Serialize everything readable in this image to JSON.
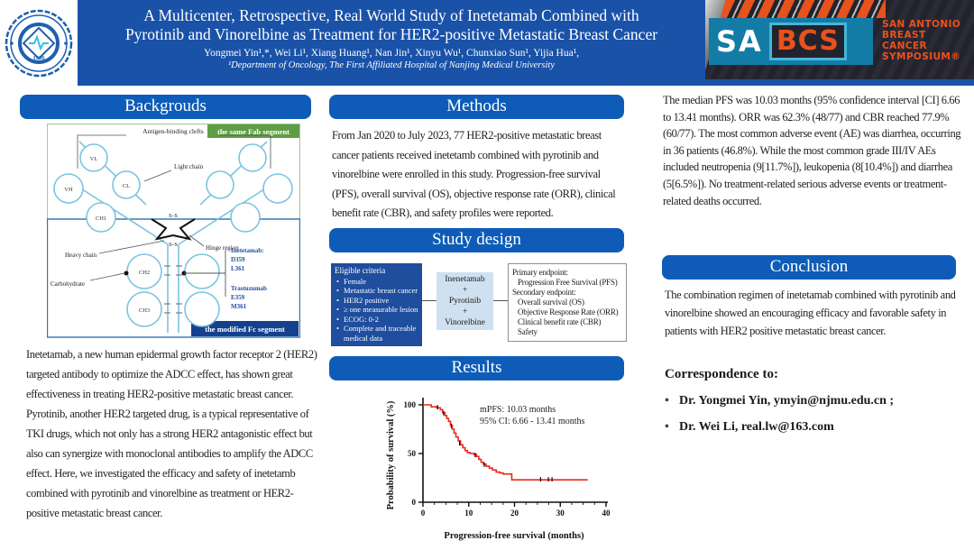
{
  "colors": {
    "banner_blue": "#1a52a8",
    "pill_blue": "#0e5cb8",
    "sabcs_teal": "#137ca6",
    "sabcs_navy": "#23232e",
    "orange": "#e8521c",
    "curve_red": "#e8291c",
    "figure_blue": "#7cc4e0",
    "green_label": "#5f9e46",
    "fc_label_blue": "#14418f",
    "eligible_box_blue": "#1f4e9e",
    "regimen_box_blue": "#cfe0f0",
    "mutation_text_blue": "#1f4ea1"
  },
  "header": {
    "title_line1": "A Multicenter, Retrospective, Real World Study of Inetetamab Combined with",
    "title_line2": "Pyrotinib and Vinorelbine as Treatment for HER2-positive Metastatic Breast Cancer",
    "authors": "Yongmei Yin¹,*, Wei Li¹, Xiang Huang¹, Nan Jin¹, Xinyu Wu¹, Chunxiao Sun¹, Yijia Hua¹,",
    "affiliation": "¹Department of Oncology, The First Affiliated Hospital of Nanjing Medical University",
    "logo": {
      "year": "1936",
      "ring_text_zh_top": "江苏省人民医院",
      "ring_text_en": "JIANGSU PROVINCE HOSPITAL",
      "ring_text_zh_bottom": "南京医科大学第一附属医院"
    },
    "sabcs": {
      "sa": "SA",
      "bcs": "BCS",
      "org_line1": "SAN ANTONIO",
      "org_line2": "BREAST",
      "org_line3": "CANCER",
      "org_line4": "SYMPOSIUM®"
    }
  },
  "sections": {
    "backgrounds": {
      "header": "Backgrouds",
      "body": "Inetetamab, a new human epidermal growth factor receptor 2 (HER2) targeted antibody to optimize the ADCC effect, has shown great effectiveness in treating HER2-positive metastatic breast cancer. Pyrotinib, another HER2 targeted drug, is a typical representative of TKI drugs, which not only has a strong HER2 antagonistic effect but also can synergize with monoclonal antibodies to amplify the ADCC effect. Here, we investigated the efficacy and safety of inetetamb combined with pyrotinib and vinorelbine as treatment or HER2-positive metastatic breast cancer."
    },
    "methods": {
      "header": "Methods",
      "body": "From Jan 2020 to July 2023, 77 HER2-positive metastatic breast cancer patients received inetetamb combined with pyrotinib and vinorelbine were enrolled in this study. Progression-free survival (PFS), overall survival (OS), objective response rate (ORR), clinical benefit rate (CBR), and safety profiles were reported."
    },
    "study_design": {
      "header": "Study design",
      "eligible": {
        "title": "Eligible criteria",
        "items": [
          "Female",
          "Metastatic breast cancer",
          "HER2 positive",
          "≥ one measurable lesion",
          "ECOG: 0-2",
          "Complete and traceable medical data"
        ]
      },
      "regimen": {
        "lines": [
          "Inenetamab",
          "+",
          "Pyrotinib",
          "+",
          "Vinorelbine"
        ]
      },
      "endpoints": {
        "lines": [
          "Primary endpoint:",
          "Progression Free Survival (PFS)",
          "Secondary endpoint:",
          "Overall survival (OS)",
          "Objective Response Rate (ORR)",
          "Clinical benefit rate (CBR)",
          "Safety"
        ]
      }
    },
    "results": {
      "header": "Results",
      "body": "The median PFS was 10.03 months (95% confidence interval [CI] 6.66 to 13.41 months). ORR was 62.3% (48/77) and CBR reached 77.9% (60/77). The most common adverse event (AE) was diarrhea, occurring in 36 patients (46.8%). While the most common grade III/IV AEs included neutropenia (9[11.7%]), leukopenia (8[10.4%]) and diarrhea (5[6.5%]). No treatment-related serious adverse events or treatment-related deaths occurred."
    },
    "conclusion": {
      "header": "Conclusion",
      "body": "The combination regimen of inetetamab combined with pyrotinib and vinorelbine showed an encouraging efficacy and favorable safety in patients with HER2 positive metastatic breast cancer."
    },
    "correspondence": {
      "heading": "Correspondence to:",
      "contacts": [
        "Dr. Yongmei Yin, ymyin@njmu.edu.cn ;",
        "Dr. Wei Li, real.lw@163.com"
      ]
    }
  },
  "figure": {
    "labels": {
      "antigen": "Antigen-binding clefts",
      "fab": "the same Fab segment",
      "light_chain": "Light chain",
      "vl": "VL",
      "vh": "VH",
      "cl": "CL",
      "ch1": "CH1",
      "ch2": "CH2",
      "ch3": "CH3",
      "ss": "S–S",
      "heavy_chain": "Heavy chain",
      "carbohydrate": "Carbohydrate",
      "hinge": "Hinge region",
      "inet_title": "Inetetamab:",
      "inet_line1": "D359",
      "inet_line2": "L361",
      "tras_title": "Trastuzumab",
      "tras_line1": "E359",
      "tras_line2": "M361",
      "fc": "the modified Fc segment"
    }
  },
  "chart_data": {
    "type": "line",
    "subtype": "kaplan-meier-step",
    "title": "",
    "xlabel": "Progression-free survival (months)",
    "ylabel": "Probability of survival (%)",
    "xlim": [
      0,
      40
    ],
    "ylim": [
      0,
      100
    ],
    "x_ticks": [
      0,
      10,
      20,
      30,
      40
    ],
    "x_minor_step": 2.5,
    "y_ticks": [
      0,
      50,
      100
    ],
    "grid": false,
    "legend": false,
    "annotations": [
      "mPFS: 10.03 months",
      "95% CI: 6.66 - 13.41 months"
    ],
    "series": [
      {
        "name": "PFS",
        "color": "#e8291c",
        "points": [
          [
            0,
            100
          ],
          [
            1.8,
            98
          ],
          [
            3.0,
            97
          ],
          [
            3.8,
            95
          ],
          [
            4.3,
            92
          ],
          [
            4.8,
            89
          ],
          [
            5.2,
            86
          ],
          [
            5.6,
            83
          ],
          [
            6.0,
            79
          ],
          [
            6.4,
            75
          ],
          [
            6.8,
            71
          ],
          [
            7.2,
            67
          ],
          [
            7.7,
            63
          ],
          [
            8.2,
            59
          ],
          [
            8.7,
            56
          ],
          [
            9.2,
            53
          ],
          [
            9.7,
            51
          ],
          [
            10.3,
            50
          ],
          [
            11.2,
            49
          ],
          [
            11.7,
            47
          ],
          [
            12.2,
            44
          ],
          [
            12.7,
            41
          ],
          [
            13.2,
            39
          ],
          [
            13.8,
            37
          ],
          [
            14.5,
            35
          ],
          [
            15.2,
            33
          ],
          [
            16.0,
            31
          ],
          [
            16.8,
            30
          ],
          [
            17.5,
            29
          ],
          [
            19.4,
            23
          ],
          [
            36,
            23
          ]
        ]
      }
    ],
    "censor_marks": [
      [
        3.2,
        97
      ],
      [
        4.5,
        91
      ],
      [
        6.2,
        78
      ],
      [
        8.0,
        60
      ],
      [
        11.4,
        48
      ],
      [
        13.4,
        38
      ],
      [
        25.7,
        23
      ],
      [
        27.4,
        23
      ],
      [
        28.2,
        23
      ]
    ],
    "median_pfs_months": 10.03,
    "ci95": [
      6.66,
      13.41
    ]
  }
}
